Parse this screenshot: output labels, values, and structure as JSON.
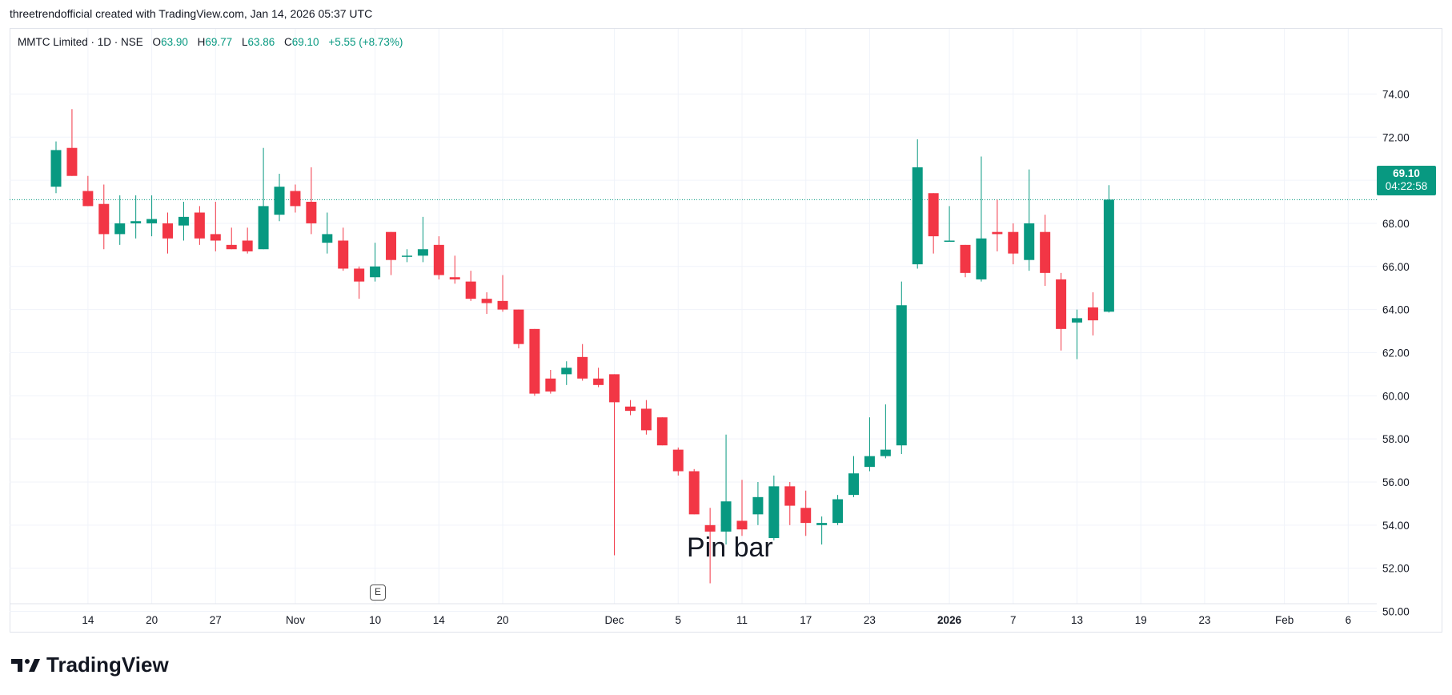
{
  "header": {
    "attribution": "threetrendofficial created with TradingView.com, Jan 14, 2026 05:37 UTC"
  },
  "legend": {
    "symbol": "MMTC Limited · 1D · NSE",
    "open_label": "O",
    "open": "63.90",
    "high_label": "H",
    "high": "69.77",
    "low_label": "L",
    "low": "63.86",
    "close_label": "C",
    "close": "69.10",
    "change": "+5.55 (+8.73%)"
  },
  "price_tag": {
    "price": "69.10",
    "countdown": "04:22:58"
  },
  "earnings_badge": "E",
  "annotation": "Pin bar",
  "logo": {
    "word": "TradingView"
  },
  "colors": {
    "up": "#089981",
    "down": "#f23645",
    "grid": "#f0f3fa",
    "text": "#131722"
  },
  "chart_data": {
    "type": "candlestick",
    "y_axis": {
      "ticks": [
        "74.00",
        "72.00",
        "70.00",
        "68.00",
        "66.00",
        "64.00",
        "62.00",
        "60.00",
        "58.00",
        "56.00",
        "54.00",
        "52.00",
        "50.00"
      ],
      "ylim": [
        49.6,
        75.6
      ],
      "side": "right"
    },
    "x_axis": {
      "ticks": [
        {
          "label": "14",
          "slot": 2
        },
        {
          "label": "20",
          "slot": 6
        },
        {
          "label": "27",
          "slot": 10
        },
        {
          "label": "Nov",
          "slot": 15
        },
        {
          "label": "10",
          "slot": 20
        },
        {
          "label": "14",
          "slot": 24
        },
        {
          "label": "20",
          "slot": 28
        },
        {
          "label": "Dec",
          "slot": 35
        },
        {
          "label": "5",
          "slot": 39
        },
        {
          "label": "11",
          "slot": 43
        },
        {
          "label": "17",
          "slot": 47
        },
        {
          "label": "23",
          "slot": 51
        },
        {
          "label": "2026",
          "slot": 56,
          "bold": true
        },
        {
          "label": "7",
          "slot": 60
        },
        {
          "label": "13",
          "slot": 64
        },
        {
          "label": "19",
          "slot": 68
        },
        {
          "label": "23",
          "slot": 72
        },
        {
          "label": "Feb",
          "slot": 77
        },
        {
          "label": "6",
          "slot": 81
        }
      ]
    },
    "last_price": 69.1,
    "candles": [
      [
        69.7,
        71.8,
        69.4,
        71.4
      ],
      [
        71.5,
        73.3,
        70.2,
        70.2
      ],
      [
        69.5,
        70.2,
        68.8,
        68.8
      ],
      [
        68.9,
        69.8,
        66.8,
        67.5
      ],
      [
        67.5,
        69.3,
        67.0,
        68.0
      ],
      [
        68.0,
        69.3,
        67.3,
        68.1
      ],
      [
        68.0,
        69.3,
        67.4,
        68.2
      ],
      [
        68.0,
        68.5,
        66.6,
        67.3
      ],
      [
        67.9,
        69.0,
        67.2,
        68.3
      ],
      [
        68.5,
        68.8,
        67.0,
        67.3
      ],
      [
        67.5,
        69.0,
        66.7,
        67.2
      ],
      [
        67.0,
        67.8,
        66.8,
        66.8
      ],
      [
        67.2,
        67.8,
        66.6,
        66.7
      ],
      [
        66.8,
        71.5,
        66.8,
        68.8
      ],
      [
        68.4,
        70.3,
        68.1,
        69.7
      ],
      [
        69.5,
        69.8,
        68.5,
        68.8
      ],
      [
        69.0,
        70.6,
        67.5,
        68.0
      ],
      [
        67.1,
        68.5,
        66.6,
        67.5
      ],
      [
        67.2,
        67.8,
        65.8,
        65.9
      ],
      [
        65.9,
        66.0,
        64.5,
        65.3
      ],
      [
        65.5,
        67.1,
        65.3,
        66.0
      ],
      [
        67.6,
        67.6,
        65.6,
        66.3
      ],
      [
        66.5,
        66.8,
        66.2,
        66.5
      ],
      [
        66.5,
        68.3,
        66.2,
        66.8
      ],
      [
        67.0,
        67.4,
        65.4,
        65.6
      ],
      [
        65.5,
        66.5,
        65.2,
        65.4
      ],
      [
        65.3,
        65.8,
        64.4,
        64.5
      ],
      [
        64.5,
        64.8,
        63.8,
        64.3
      ],
      [
        64.4,
        65.6,
        63.9,
        64.0
      ],
      [
        64.0,
        64.0,
        62.2,
        62.4
      ],
      [
        63.1,
        63.1,
        60.0,
        60.1
      ],
      [
        60.8,
        61.2,
        60.1,
        60.2
      ],
      [
        61.0,
        61.6,
        60.5,
        61.3
      ],
      [
        61.8,
        62.4,
        60.7,
        60.8
      ],
      [
        60.8,
        61.3,
        60.4,
        60.5
      ],
      [
        61.0,
        61.0,
        52.6,
        59.7
      ],
      [
        59.5,
        59.8,
        59.1,
        59.3
      ],
      [
        59.4,
        59.8,
        58.2,
        58.4
      ],
      [
        59.0,
        59.0,
        57.7,
        57.7
      ],
      [
        57.5,
        57.6,
        56.3,
        56.5
      ],
      [
        56.5,
        56.6,
        54.5,
        54.5
      ],
      [
        54.0,
        54.8,
        51.3,
        53.7
      ],
      [
        53.7,
        58.2,
        53.1,
        55.1
      ],
      [
        54.2,
        56.1,
        53.5,
        53.8
      ],
      [
        54.5,
        56.0,
        54.0,
        55.3
      ],
      [
        53.4,
        56.3,
        53.3,
        55.8
      ],
      [
        55.8,
        56.0,
        54.0,
        54.9
      ],
      [
        54.8,
        55.6,
        53.5,
        54.1
      ],
      [
        54.0,
        54.4,
        53.1,
        54.1
      ],
      [
        54.1,
        55.4,
        54.0,
        55.2
      ],
      [
        55.4,
        57.2,
        55.3,
        56.4
      ],
      [
        56.7,
        59.0,
        56.5,
        57.2
      ],
      [
        57.2,
        59.6,
        57.1,
        57.5
      ],
      [
        57.7,
        65.3,
        57.3,
        64.2
      ],
      [
        66.1,
        71.9,
        65.9,
        70.6
      ],
      [
        69.4,
        69.4,
        66.6,
        67.4
      ],
      [
        67.2,
        68.8,
        67.2,
        67.2
      ],
      [
        67.0,
        67.0,
        65.5,
        65.7
      ],
      [
        65.4,
        71.1,
        65.3,
        67.3
      ],
      [
        67.6,
        69.1,
        66.7,
        67.5
      ],
      [
        67.6,
        68.0,
        66.1,
        66.6
      ],
      [
        66.3,
        70.5,
        65.8,
        68.0
      ],
      [
        67.6,
        68.4,
        65.1,
        65.7
      ],
      [
        65.4,
        65.7,
        62.1,
        63.1
      ],
      [
        63.4,
        64.0,
        61.7,
        63.6
      ],
      [
        64.1,
        64.8,
        62.8,
        63.5
      ],
      [
        63.9,
        69.77,
        63.86,
        69.1
      ]
    ]
  }
}
